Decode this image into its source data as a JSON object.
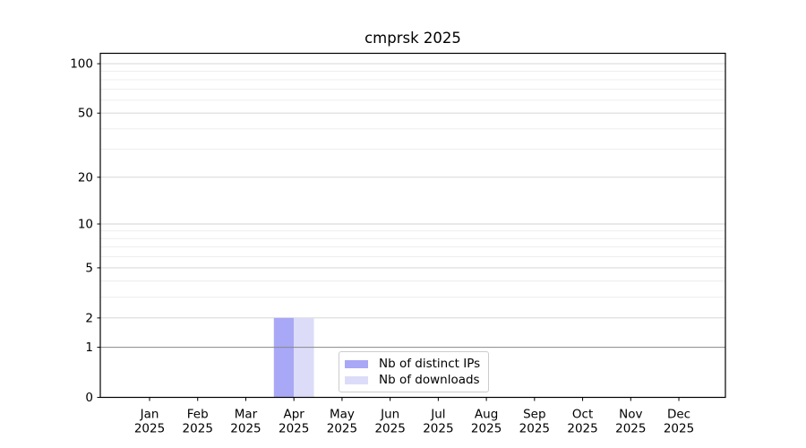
{
  "chart_data": {
    "type": "bar",
    "title": "cmprsk 2025",
    "year_label": "2025",
    "categories": [
      "Jan",
      "Feb",
      "Mar",
      "Apr",
      "May",
      "Jun",
      "Jul",
      "Aug",
      "Sep",
      "Oct",
      "Nov",
      "Dec"
    ],
    "series": [
      {
        "name": "Nb of distinct IPs",
        "color": "#a8a8f6",
        "values": [
          0,
          0,
          0,
          2,
          0,
          0,
          0,
          0,
          0,
          0,
          0,
          0
        ]
      },
      {
        "name": "Nb of downloads",
        "color": "#dcdcf9",
        "values": [
          0,
          0,
          0,
          2,
          0,
          0,
          0,
          0,
          0,
          0,
          0,
          0
        ]
      }
    ],
    "y_axis": {
      "scale": "log1p",
      "tick_values": [
        0,
        1,
        2,
        5,
        10,
        20,
        50,
        100
      ],
      "tick_labels": [
        "0",
        "1",
        "2",
        "5",
        "10",
        "20",
        "50",
        "100"
      ],
      "major_grid_values": [
        2,
        5,
        10,
        20,
        50,
        100
      ],
      "minor_grid_values": [
        3,
        4,
        6,
        7,
        8,
        9,
        30,
        40,
        60,
        70,
        80,
        90
      ],
      "emphasized_grid_value": 1,
      "range": [
        0,
        100
      ]
    },
    "x_axis": {
      "tick_line1": [
        "Jan",
        "Feb",
        "Mar",
        "Apr",
        "May",
        "Jun",
        "Jul",
        "Aug",
        "Sep",
        "Oct",
        "Nov",
        "Dec"
      ],
      "tick_line2": "2025"
    },
    "grid": "horizontal",
    "legend": {
      "position": "lower-center",
      "items": [
        "Nb of distinct IPs",
        "Nb of downloads"
      ]
    }
  },
  "colors": {
    "background": "#ffffff",
    "axis": "#000000",
    "text": "#000000",
    "major_grid": "#d0d0d0",
    "minor_grid": "#ececec",
    "emphasis_grid": "#878787",
    "legend_border": "#cccccc",
    "legend_background": "#ffffff"
  }
}
